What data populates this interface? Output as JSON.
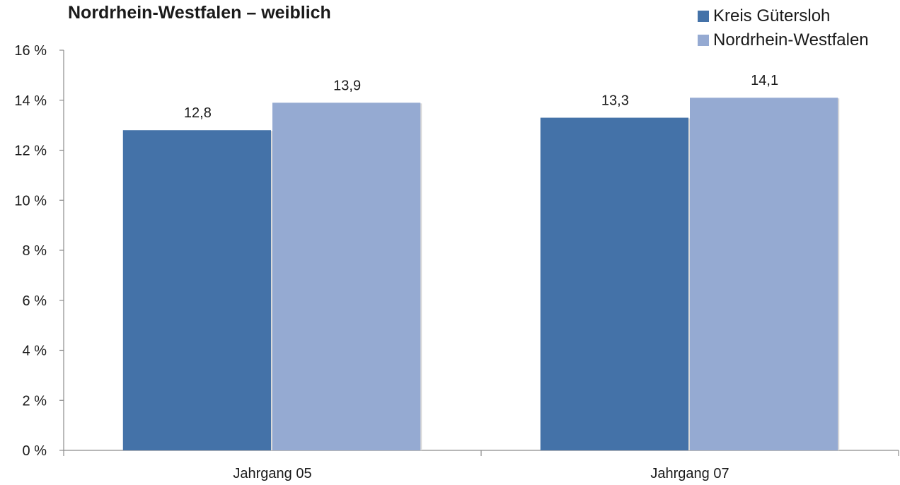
{
  "chart_data": {
    "type": "bar",
    "title": "Nordrhein-Westfalen – weiblich",
    "xlabel": "",
    "ylabel": "",
    "categories": [
      "Jahrgang 05",
      "Jahrgang 07"
    ],
    "series": [
      {
        "name": "Kreis Gütersloh",
        "values": [
          12.8,
          13.3
        ],
        "labels": [
          "12,8",
          "13,3"
        ],
        "color": "#4472a8"
      },
      {
        "name": "Nordrhein-Westfalen",
        "values": [
          13.9,
          14.1
        ],
        "labels": [
          "13,9",
          "14,1"
        ],
        "color": "#95aad2"
      }
    ],
    "ylim": [
      0,
      16
    ],
    "yticks": [
      0,
      2,
      4,
      6,
      8,
      10,
      12,
      14,
      16
    ],
    "ytick_labels": [
      "0 %",
      "2 %",
      "4 %",
      "6 %",
      "8 %",
      "10 %",
      "12 %",
      "14 %",
      "16 %"
    ],
    "grid": false,
    "legend_position": "top-right"
  }
}
